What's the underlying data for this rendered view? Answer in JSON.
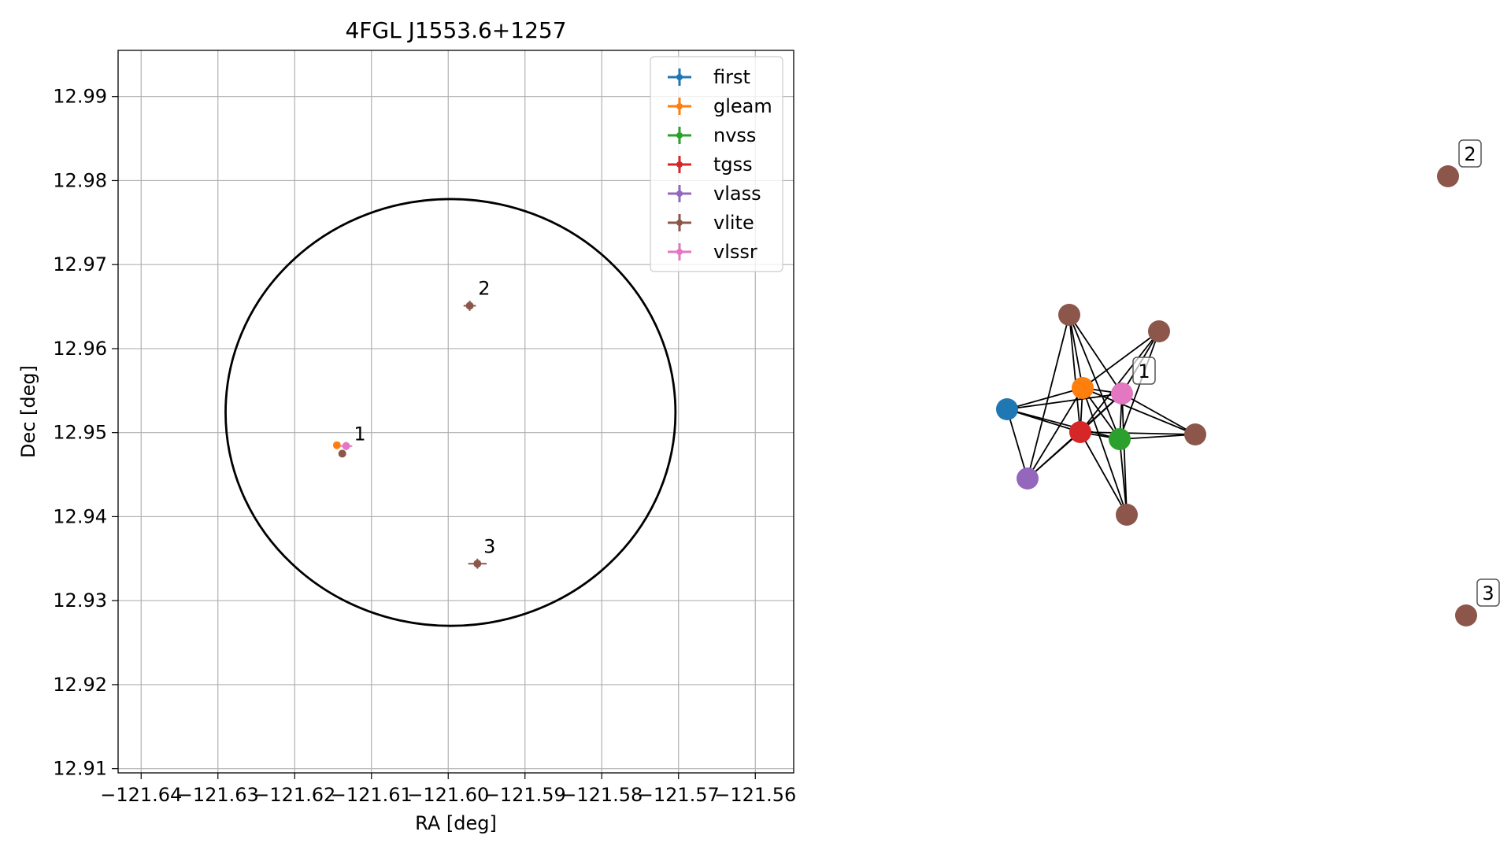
{
  "chart_data": [
    {
      "type": "scatter",
      "title": "4FGL J1553.6+1257",
      "xlabel": "RA [deg]",
      "ylabel": "Dec [deg]",
      "xlim": [
        -121.643,
        -121.555
      ],
      "ylim": [
        12.9095,
        12.9955
      ],
      "x_axis_inverted": false,
      "grid": true,
      "legend_position": "upper-right",
      "x_ticks": [
        -121.64,
        -121.63,
        -121.62,
        -121.61,
        -121.6,
        -121.59,
        -121.58,
        -121.57,
        -121.56
      ],
      "x_tick_labels": [
        "−121.64",
        "−121.63",
        "−121.62",
        "−121.61",
        "−121.60",
        "−121.59",
        "−121.58",
        "−121.57",
        "−121.56"
      ],
      "y_ticks": [
        12.91,
        12.92,
        12.93,
        12.94,
        12.95,
        12.96,
        12.97,
        12.98,
        12.99
      ],
      "y_tick_labels": [
        "12.91",
        "12.92",
        "12.93",
        "12.94",
        "12.95",
        "12.96",
        "12.97",
        "12.98",
        "12.99"
      ],
      "circle": {
        "center": [
          -121.5997,
          12.9524
        ],
        "radius_x": 0.0293,
        "radius_y": 0.0254,
        "color": "#000000"
      },
      "series": [
        {
          "name": "first",
          "color": "#1f77b4",
          "points": []
        },
        {
          "name": "gleam",
          "color": "#ff7f0e",
          "points": [
            {
              "x": -121.6145,
              "y": 12.9485,
              "ex": 0,
              "ey": 0
            }
          ]
        },
        {
          "name": "nvss",
          "color": "#2ca02c",
          "points": []
        },
        {
          "name": "tgss",
          "color": "#d62728",
          "points": []
        },
        {
          "name": "vlass",
          "color": "#9467bd",
          "points": []
        },
        {
          "name": "vlite",
          "color": "#8c564b",
          "points": [
            {
              "x": -121.6138,
              "y": 12.9475,
              "ex": 0,
              "ey": 0
            },
            {
              "x": -121.5972,
              "y": 12.9651,
              "ex": 0.0008,
              "ey": 0.0006
            },
            {
              "x": -121.5962,
              "y": 12.9344,
              "ex": 0.0012,
              "ey": 0.0006
            }
          ]
        },
        {
          "name": "vlssr",
          "color": "#e377c2",
          "points": [
            {
              "x": -121.6133,
              "y": 12.9484,
              "ex": 0.0008,
              "ey": 0.0005
            }
          ]
        }
      ],
      "annotations": [
        {
          "text": "1",
          "x": -121.6123,
          "y": 12.9491
        },
        {
          "text": "2",
          "x": -121.5961,
          "y": 12.9664
        },
        {
          "text": "3",
          "x": -121.5954,
          "y": 12.9357
        }
      ]
    },
    {
      "type": "network",
      "nodes": [
        {
          "id": "first",
          "color": "#1f77b4"
        },
        {
          "id": "gleam",
          "color": "#ff7f0e"
        },
        {
          "id": "nvss",
          "color": "#2ca02c"
        },
        {
          "id": "tgss",
          "color": "#d62728"
        },
        {
          "id": "vlass",
          "color": "#9467bd"
        },
        {
          "id": "vlssr",
          "color": "#e377c2"
        },
        {
          "id": "vlite_a",
          "color": "#8c564b"
        },
        {
          "id": "vlite_b",
          "color": "#8c564b"
        },
        {
          "id": "vlite_c",
          "color": "#8c564b"
        },
        {
          "id": "vlite_d",
          "color": "#8c564b"
        },
        {
          "id": "vlite_2",
          "color": "#8c564b"
        },
        {
          "id": "vlite_3",
          "color": "#8c564b"
        }
      ],
      "edges": [
        [
          "first",
          "gleam"
        ],
        [
          "first",
          "tgss"
        ],
        [
          "first",
          "nvss"
        ],
        [
          "first",
          "vlssr"
        ],
        [
          "first",
          "vlass"
        ],
        [
          "gleam",
          "tgss"
        ],
        [
          "gleam",
          "nvss"
        ],
        [
          "gleam",
          "vlssr"
        ],
        [
          "gleam",
          "vlite_a"
        ],
        [
          "gleam",
          "vlite_b"
        ],
        [
          "gleam",
          "vlite_c"
        ],
        [
          "gleam",
          "vlite_d"
        ],
        [
          "tgss",
          "nvss"
        ],
        [
          "tgss",
          "vlssr"
        ],
        [
          "tgss",
          "vlite_a"
        ],
        [
          "tgss",
          "vlite_b"
        ],
        [
          "tgss",
          "vlite_c"
        ],
        [
          "tgss",
          "vlite_d"
        ],
        [
          "tgss",
          "vlass"
        ],
        [
          "nvss",
          "vlssr"
        ],
        [
          "nvss",
          "vlite_a"
        ],
        [
          "nvss",
          "vlite_b"
        ],
        [
          "nvss",
          "vlite_c"
        ],
        [
          "nvss",
          "vlite_d"
        ],
        [
          "vlssr",
          "vlite_a"
        ],
        [
          "vlssr",
          "vlite_b"
        ],
        [
          "vlssr",
          "vlite_c"
        ],
        [
          "vlssr",
          "vlite_d"
        ],
        [
          "vlass",
          "vlite_a"
        ],
        [
          "vlass",
          "gleam"
        ],
        [
          "vlass",
          "vlssr"
        ]
      ],
      "labels": [
        {
          "node": "vlssr",
          "text": "1"
        },
        {
          "node": "vlite_2",
          "text": "2"
        },
        {
          "node": "vlite_3",
          "text": "3"
        }
      ]
    }
  ]
}
